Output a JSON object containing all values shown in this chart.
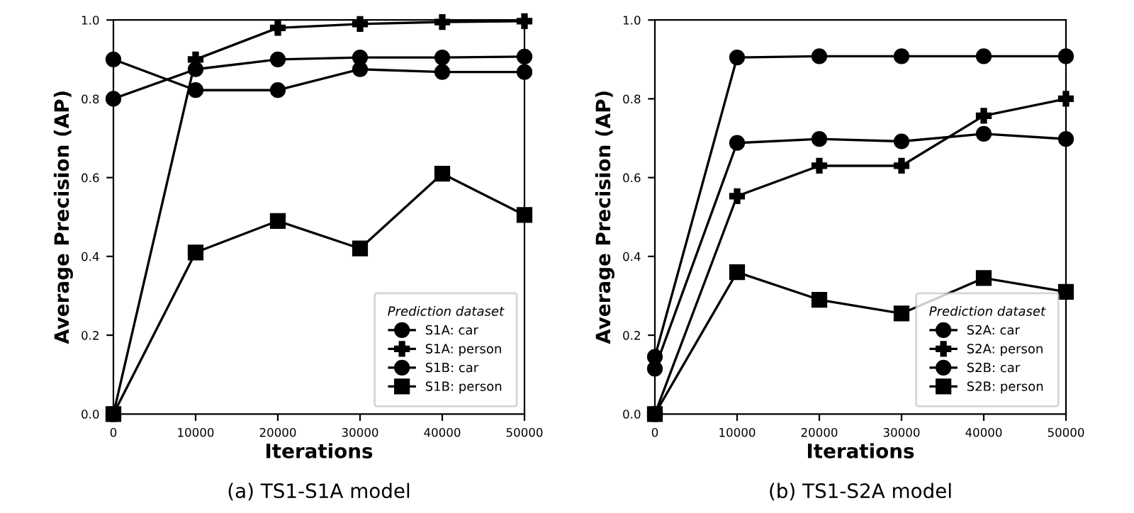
{
  "chart_data": [
    {
      "type": "line",
      "title": "(a) TS1-S1A model",
      "xlabel": "Iterations",
      "ylabel": "Average Precision (AP)",
      "legend_title": "Prediction dataset",
      "legend": "bottom right",
      "grid": false,
      "x": [
        0,
        10000,
        20000,
        30000,
        40000,
        50000
      ],
      "xlim": [
        0,
        50000
      ],
      "xticks": [
        0,
        10000,
        20000,
        30000,
        40000,
        50000
      ],
      "ylim": [
        0,
        1
      ],
      "yticks": [
        {
          "value": 0,
          "label": "0.0"
        },
        {
          "value": 0.2,
          "label": "0.2"
        },
        {
          "value": 0.4,
          "label": "0.4"
        },
        {
          "value": 0.6,
          "label": "0.6"
        },
        {
          "value": 0.8,
          "label": "0.8"
        },
        {
          "value": 1,
          "label": "1.0"
        }
      ],
      "series": [
        {
          "name": "S1A: car",
          "color": "#000000",
          "marker": "circle",
          "values": [
            0.8,
            0.875,
            0.9,
            0.905,
            0.905,
            0.907
          ]
        },
        {
          "name": "S1A: person",
          "color": "#000000",
          "marker": "cross",
          "values": [
            0.0,
            0.9,
            0.98,
            0.99,
            0.995,
            0.997
          ]
        },
        {
          "name": "S1B: car",
          "color": "#000000",
          "marker": "circle",
          "values": [
            0.9,
            0.822,
            0.822,
            0.875,
            0.868,
            0.868
          ]
        },
        {
          "name": "S1B: person",
          "color": "#000000",
          "marker": "square",
          "values": [
            0.0,
            0.41,
            0.49,
            0.42,
            0.61,
            0.505
          ]
        }
      ]
    },
    {
      "type": "line",
      "title": "(b) TS1-S2A model",
      "xlabel": "Iterations",
      "ylabel": "Average Precision (AP)",
      "legend_title": "Prediction dataset",
      "legend": "bottom right",
      "grid": false,
      "x": [
        0,
        10000,
        20000,
        30000,
        40000,
        50000
      ],
      "xlim": [
        0,
        50000
      ],
      "xticks": [
        0,
        10000,
        20000,
        30000,
        40000,
        50000
      ],
      "ylim": [
        0,
        1
      ],
      "yticks": [
        {
          "value": 0,
          "label": "0.0"
        },
        {
          "value": 0.2,
          "label": "0.2"
        },
        {
          "value": 0.4,
          "label": "0.4"
        },
        {
          "value": 0.6,
          "label": "0.6"
        },
        {
          "value": 0.8,
          "label": "0.8"
        },
        {
          "value": 1,
          "label": "1.0"
        }
      ],
      "series": [
        {
          "name": "S2A: car",
          "color": "#000000",
          "marker": "circle",
          "values": [
            0.145,
            0.905,
            0.908,
            0.908,
            0.908,
            0.908
          ]
        },
        {
          "name": "S2A: person",
          "color": "#000000",
          "marker": "cross",
          "values": [
            0.0,
            0.553,
            0.63,
            0.63,
            0.757,
            0.8
          ]
        },
        {
          "name": "S2B: car",
          "color": "#000000",
          "marker": "circle",
          "values": [
            0.115,
            0.688,
            0.698,
            0.692,
            0.711,
            0.698
          ]
        },
        {
          "name": "S2B: person",
          "color": "#000000",
          "marker": "square",
          "values": [
            0.0,
            0.36,
            0.29,
            0.255,
            0.345,
            0.31
          ]
        }
      ]
    }
  ]
}
